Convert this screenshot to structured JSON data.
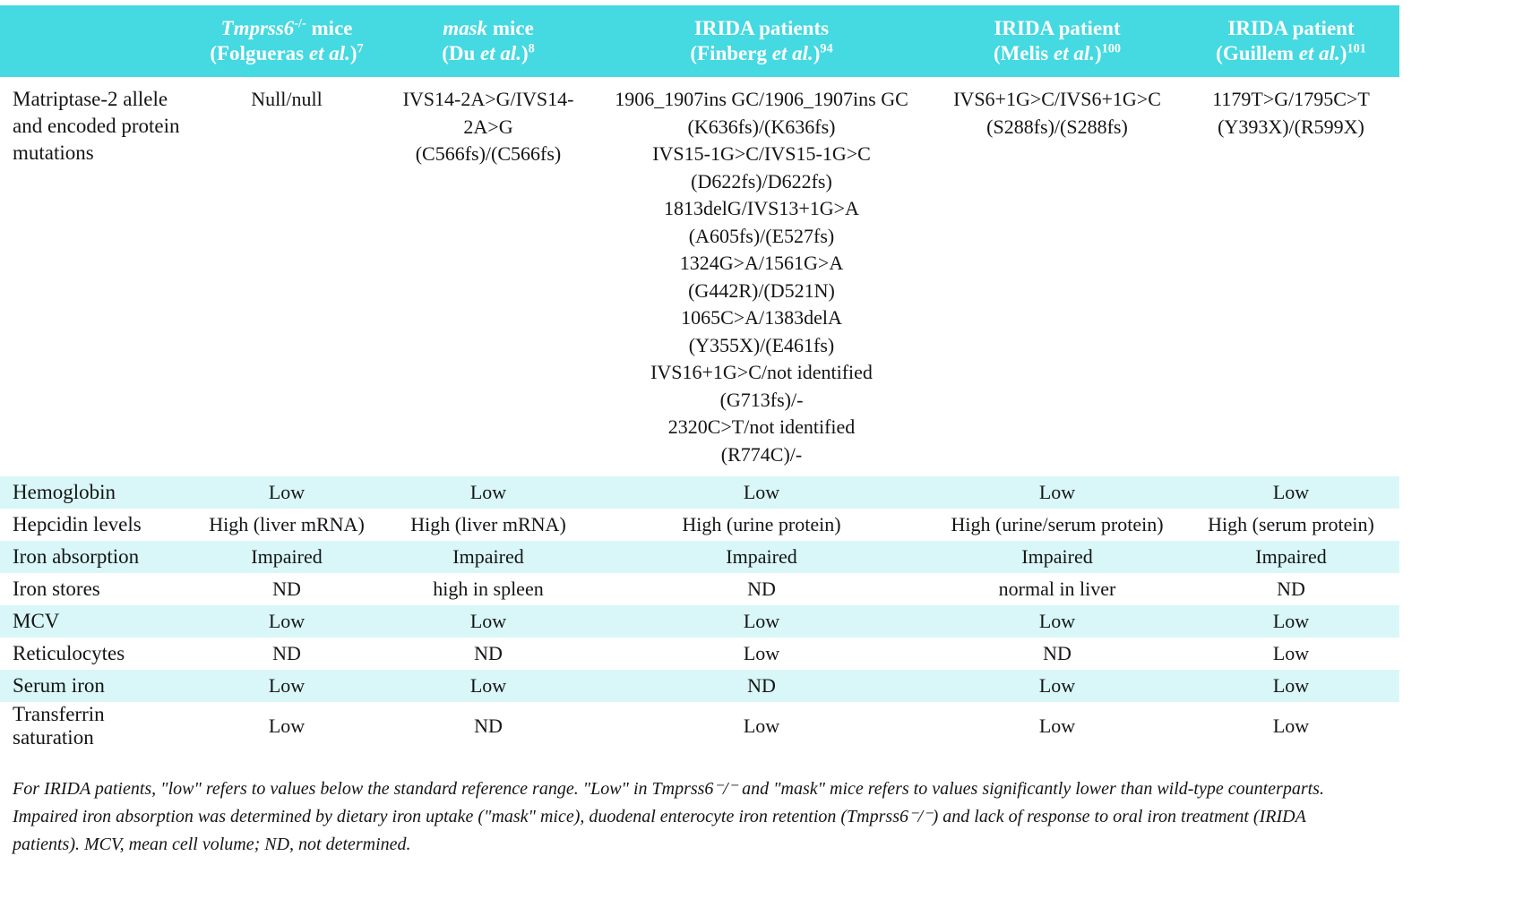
{
  "colors": {
    "header_bg": "#45d9e2",
    "row_alt_bg": "#d9f7f8",
    "text": "#151515"
  },
  "header": {
    "columns": [
      {
        "line1": [
          {
            "t": "Tmprss6",
            "i": true
          },
          {
            "t": "-/-",
            "sup": true
          },
          {
            "t": " mice"
          }
        ],
        "line2": [
          {
            "t": "(Folgueras "
          },
          {
            "t": "et al.",
            "i": true
          },
          {
            "t": ")"
          },
          {
            "t": "7",
            "sup": true
          }
        ]
      },
      {
        "line1": [
          {
            "t": "mask",
            "i": true
          },
          {
            "t": " mice"
          }
        ],
        "line2": [
          {
            "t": "(Du "
          },
          {
            "t": "et al.",
            "i": true
          },
          {
            "t": ")"
          },
          {
            "t": "8",
            "sup": true
          }
        ]
      },
      {
        "line1": [
          {
            "t": "IRIDA patients"
          }
        ],
        "line2": [
          {
            "t": "(Finberg "
          },
          {
            "t": "et al.",
            "i": true
          },
          {
            "t": ")"
          },
          {
            "t": "94",
            "sup": true
          }
        ]
      },
      {
        "line1": [
          {
            "t": "IRIDA patient"
          }
        ],
        "line2": [
          {
            "t": "(Melis "
          },
          {
            "t": "et al.",
            "i": true
          },
          {
            "t": ")"
          },
          {
            "t": "100",
            "sup": true
          }
        ]
      },
      {
        "line1": [
          {
            "t": "IRIDA patient"
          }
        ],
        "line2": [
          {
            "t": "(Guillem "
          },
          {
            "t": "et al.",
            "i": true
          },
          {
            "t": ")"
          },
          {
            "t": "101",
            "sup": true
          }
        ]
      }
    ]
  },
  "mutation_row": {
    "label": "Matriptase-2 allele and encoded protein mutations",
    "cells": [
      {
        "lines": [
          "Null/null"
        ]
      },
      {
        "lines": [
          "IVS14-2A>G/IVS14-2A>G",
          "(C566fs)/(C566fs)"
        ]
      },
      {
        "lines": [
          "1906_1907ins GC/1906_1907ins GC",
          "(K636fs)/(K636fs)",
          "IVS15-1G>C/IVS15-1G>C",
          "(D622fs)/D622fs)",
          "1813delG/IVS13+1G>A",
          "(A605fs)/(E527fs)",
          "1324G>A/1561G>A",
          "(G442R)/(D521N)",
          "1065C>A/1383delA",
          "(Y355X)/(E461fs)",
          "IVS16+1G>C/not identified",
          "(G713fs)/-",
          "2320C>T/not identified",
          "(R774C)/-"
        ]
      },
      {
        "lines": [
          "IVS6+1G>C/IVS6+1G>C",
          "(S288fs)/(S288fs)"
        ]
      },
      {
        "lines": [
          "1179T>G/1795C>T",
          "(Y393X)/(R599X)"
        ]
      }
    ]
  },
  "rows": [
    {
      "label": "Hemoglobin",
      "values": [
        "Low",
        "Low",
        "Low",
        "Low",
        "Low"
      ]
    },
    {
      "label": "Hepcidin levels",
      "values": [
        "High (liver mRNA)",
        "High (liver mRNA)",
        "High (urine protein)",
        "High (urine/serum protein)",
        "High (serum protein)"
      ]
    },
    {
      "label": "Iron absorption",
      "values": [
        "Impaired",
        "Impaired",
        "Impaired",
        "Impaired",
        "Impaired"
      ]
    },
    {
      "label": "Iron stores",
      "values": [
        "ND",
        "high in spleen",
        "ND",
        "normal in liver",
        "ND"
      ]
    },
    {
      "label": "MCV",
      "values": [
        "Low",
        "Low",
        "Low",
        "Low",
        "Low"
      ]
    },
    {
      "label": "Reticulocytes",
      "values": [
        "ND",
        "ND",
        "Low",
        "ND",
        "Low"
      ]
    },
    {
      "label": "Serum iron",
      "values": [
        "Low",
        "Low",
        "ND",
        "Low",
        "Low"
      ]
    },
    {
      "label": "Transferrin saturation",
      "values": [
        "Low",
        "ND",
        "Low",
        "Low",
        "Low"
      ]
    }
  ],
  "footnote": {
    "lines": [
      "For IRIDA patients, \"low\" refers to values below the standard reference range. \"Low\" in Tmprss6⁻/⁻ and \"mask\" mice refers to values significantly lower than wild-type counterparts.",
      "Impaired iron absorption was determined by dietary iron uptake (\"mask\" mice), duodenal enterocyte iron retention (Tmprss6⁻/⁻) and lack of response to oral iron treatment (IRIDA",
      "patients). MCV, mean cell volume; ND, not determined."
    ]
  }
}
